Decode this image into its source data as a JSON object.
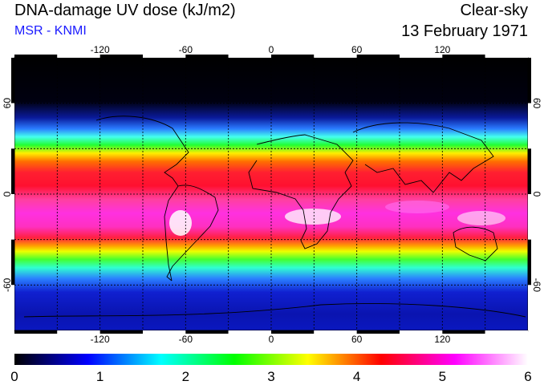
{
  "header": {
    "title": "DNA-damage UV dose (kJ/m2)",
    "source": "MSR - KNMI",
    "sky_condition": "Clear-sky",
    "date": "13 February 1971"
  },
  "map": {
    "projection": "equirectangular",
    "lon_range": [
      -180,
      180
    ],
    "lat_range": [
      -90,
      90
    ],
    "gridlines": true,
    "lon_ticks": [
      "-120",
      "-60",
      "0",
      "60",
      "120"
    ],
    "lon_tick_values": [
      -120,
      -60,
      0,
      60,
      120
    ],
    "lat_ticks": [
      "60",
      "0",
      "-60"
    ],
    "lat_tick_values": [
      60,
      0,
      -60
    ],
    "colors": {
      "polar_night": "#000000",
      "low": "#0000ff",
      "mid": "#00ff00",
      "high": "#ff0000",
      "max": "#ffffff"
    }
  },
  "colorbar": {
    "min": 0,
    "max": 6,
    "tick_labels": [
      "0",
      "1",
      "2",
      "3",
      "4",
      "5",
      "6"
    ],
    "stops": [
      "#000000",
      "#0000ff",
      "#00ffff",
      "#00ff00",
      "#ffff00",
      "#ff0000",
      "#ff00ff",
      "#ffffff"
    ]
  }
}
